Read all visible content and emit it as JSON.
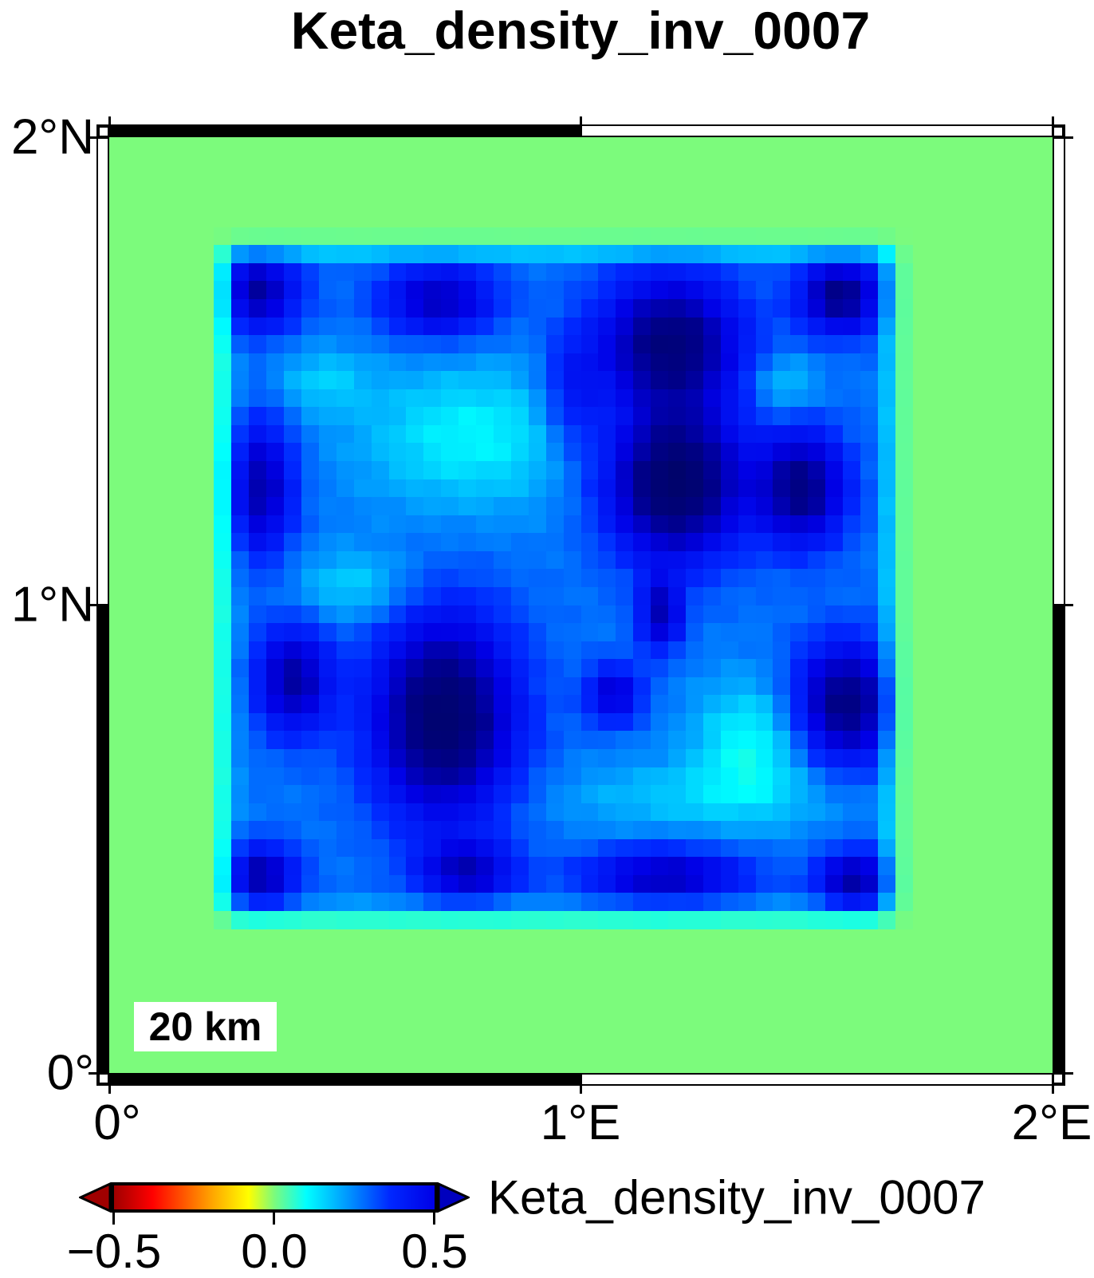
{
  "title": "Keta_density_inv_0007",
  "map": {
    "x_axis": {
      "ticks": [
        {
          "value": 0,
          "label": "0°"
        },
        {
          "value": 1,
          "label": "1°E"
        },
        {
          "value": 2,
          "label": "2°E"
        }
      ]
    },
    "y_axis": {
      "ticks": [
        {
          "value": 0,
          "label": "0°"
        },
        {
          "value": 1,
          "label": "1°N"
        },
        {
          "value": 2,
          "label": "2°N"
        }
      ]
    },
    "scale_bar": {
      "label": "20 km"
    }
  },
  "colorbar": {
    "label": "Keta_density_inv_0007",
    "min": -0.5,
    "max": 0.5,
    "tick_labels": [
      "−0.5",
      "0.0",
      "0.5"
    ],
    "tick_values": [
      -0.5,
      0.0,
      0.5
    ],
    "left_arrow_color": "#A00000",
    "right_arrow_color": "#0000BE"
  },
  "chart_data": {
    "type": "heatmap",
    "title": "Keta_density_inv_0007",
    "region": {
      "lon_min": 0,
      "lon_max": 2,
      "lat_min": 0,
      "lat_max": 2
    },
    "axis_tick_values": {
      "x": [
        0,
        1,
        2
      ],
      "y": [
        0,
        1,
        2
      ]
    },
    "grid": {
      "nx": 54,
      "ny": 52
    },
    "value_range": [
      -0.5,
      0.5
    ],
    "background_value": 0.0,
    "plateau": {
      "value": 0.27,
      "lon_min": 0.21,
      "lon_max": 1.7,
      "lat_min": 0.3,
      "lat_max": 1.8,
      "taper": 0.085
    },
    "anomalies": [
      {
        "lon": 0.31,
        "lat": 1.67,
        "sx": 0.065,
        "sy": 0.06,
        "amp": 0.34
      },
      {
        "lon": 0.7,
        "lat": 1.65,
        "sx": 0.085,
        "sy": 0.055,
        "amp": 0.3
      },
      {
        "lon": 1.19,
        "lat": 1.56,
        "sx": 0.105,
        "sy": 0.1,
        "amp": 0.44
      },
      {
        "lon": 1.55,
        "lat": 1.66,
        "sx": 0.06,
        "sy": 0.055,
        "amp": 0.4
      },
      {
        "lon": 1.2,
        "lat": 1.26,
        "sx": 0.1,
        "sy": 0.11,
        "amp": 0.52
      },
      {
        "lon": 1.47,
        "lat": 1.25,
        "sx": 0.065,
        "sy": 0.085,
        "amp": 0.4
      },
      {
        "lon": 0.32,
        "lat": 1.25,
        "sx": 0.05,
        "sy": 0.1,
        "amp": 0.33
      },
      {
        "lon": 0.71,
        "lat": 0.76,
        "sx": 0.105,
        "sy": 0.15,
        "amp": 0.5
      },
      {
        "lon": 0.39,
        "lat": 0.84,
        "sx": 0.055,
        "sy": 0.08,
        "amp": 0.34
      },
      {
        "lon": 0.32,
        "lat": 0.42,
        "sx": 0.055,
        "sy": 0.048,
        "amp": 0.33
      },
      {
        "lon": 1.18,
        "lat": 0.42,
        "sx": 0.12,
        "sy": 0.042,
        "amp": 0.3
      },
      {
        "lon": 1.58,
        "lat": 0.41,
        "sx": 0.055,
        "sy": 0.045,
        "amp": 0.34
      },
      {
        "lon": 1.56,
        "lat": 0.79,
        "sx": 0.075,
        "sy": 0.09,
        "amp": 0.42
      },
      {
        "lon": 1.07,
        "lat": 0.81,
        "sx": 0.042,
        "sy": 0.045,
        "amp": 0.26
      },
      {
        "lon": 1.17,
        "lat": 0.98,
        "sx": 0.032,
        "sy": 0.055,
        "amp": 0.3
      },
      {
        "lon": 0.76,
        "lat": 0.43,
        "sx": 0.07,
        "sy": 0.045,
        "amp": 0.28
      },
      {
        "lon": 0.98,
        "lat": 1.45,
        "sx": 0.045,
        "sy": 0.09,
        "amp": 0.16
      },
      {
        "lon": 0.77,
        "lat": 1.36,
        "sx": 0.17,
        "sy": 0.11,
        "amp": -0.16
      },
      {
        "lon": 1.36,
        "lat": 0.71,
        "sx": 0.085,
        "sy": 0.09,
        "amp": -0.17
      },
      {
        "lon": 1.25,
        "lat": 0.59,
        "sx": 0.22,
        "sy": 0.055,
        "amp": -0.1
      },
      {
        "lon": 0.52,
        "lat": 1.04,
        "sx": 0.09,
        "sy": 0.055,
        "amp": -0.12
      },
      {
        "lon": 0.45,
        "lat": 1.48,
        "sx": 0.07,
        "sy": 0.05,
        "amp": -0.1
      },
      {
        "lon": 1.43,
        "lat": 1.47,
        "sx": 0.05,
        "sy": 0.045,
        "amp": -0.12
      }
    ],
    "noise_amp": 0.013,
    "colormap_stops": [
      [
        0.0,
        160,
        0,
        0
      ],
      [
        0.12,
        255,
        0,
        0
      ],
      [
        0.3,
        255,
        160,
        0
      ],
      [
        0.42,
        255,
        255,
        0
      ],
      [
        0.5,
        124,
        251,
        124
      ],
      [
        0.6,
        0,
        255,
        255
      ],
      [
        0.73,
        0,
        150,
        255
      ],
      [
        0.86,
        0,
        40,
        255
      ],
      [
        1.0,
        0,
        0,
        230
      ],
      [
        1.15,
        0,
        0,
        140
      ],
      [
        1.35,
        0,
        5,
        90
      ]
    ],
    "map_background_color": "#7CFB7C",
    "legend_position": "bottom"
  }
}
